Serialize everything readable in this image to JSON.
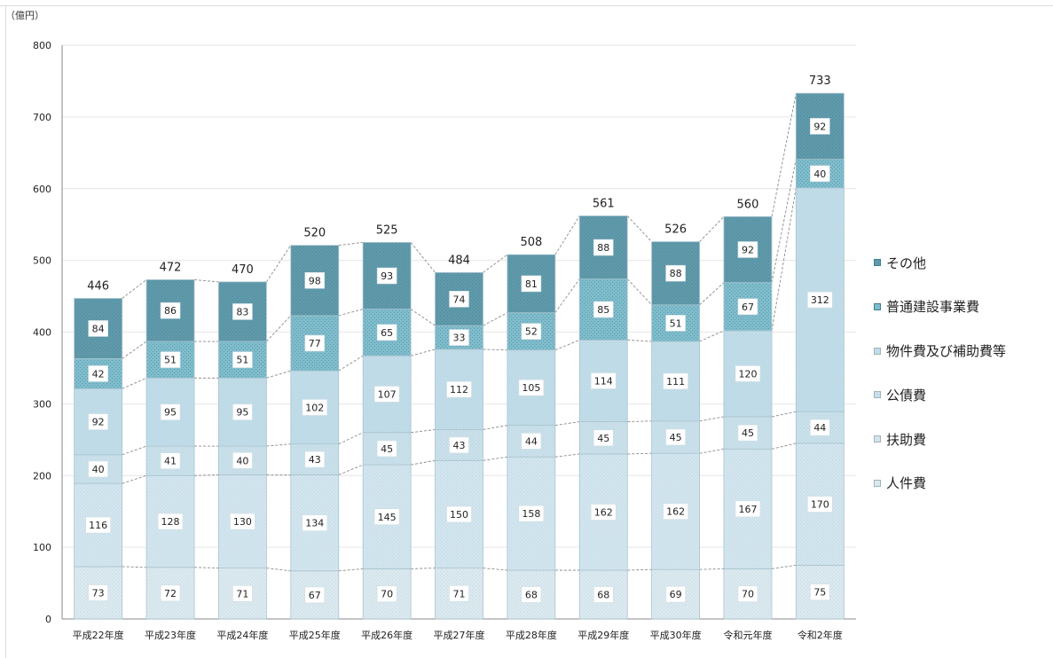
{
  "chart_data": {
    "type": "bar",
    "stacked": true,
    "unit": "（億円）",
    "categories": [
      "平成22年度",
      "平成23年度",
      "平成24年度",
      "平成25年度",
      "平成26年度",
      "平成27年度",
      "平成28年度",
      "平成29年度",
      "平成30年度",
      "令和元年度",
      "令和2年度"
    ],
    "series": [
      {
        "name": "人件費",
        "values": [
          73,
          72,
          71,
          67,
          70,
          71,
          68,
          68,
          69,
          70,
          75
        ],
        "color": "#dbe9ef"
      },
      {
        "name": "扶助費",
        "values": [
          116,
          128,
          130,
          134,
          145,
          150,
          158,
          162,
          162,
          167,
          170
        ],
        "color": "#d2e5ee"
      },
      {
        "name": "公債費",
        "values": [
          40,
          41,
          40,
          43,
          45,
          43,
          44,
          45,
          45,
          45,
          44
        ],
        "color": "#c9e0ea"
      },
      {
        "name": "物件費及び補助費等",
        "values": [
          92,
          95,
          95,
          102,
          107,
          112,
          105,
          114,
          111,
          120,
          312
        ],
        "color": "#c0dce8"
      },
      {
        "name": "普通建設事業費",
        "values": [
          42,
          51,
          51,
          77,
          65,
          33,
          52,
          85,
          51,
          67,
          40
        ],
        "color": "#7fbccc"
      },
      {
        "name": "その他",
        "values": [
          84,
          86,
          83,
          98,
          93,
          74,
          81,
          88,
          88,
          92,
          92
        ],
        "color": "#5f99aa"
      }
    ],
    "totals": [
      446,
      472,
      470,
      520,
      525,
      484,
      508,
      561,
      526,
      560,
      733
    ],
    "yticks": [
      0,
      100,
      200,
      300,
      400,
      500,
      600,
      700,
      800
    ],
    "ylim": [
      0,
      800
    ],
    "grid": true,
    "legend_position": "right"
  },
  "legend_order": [
    "その他",
    "普通建設事業費",
    "物件費及び補助費等",
    "公債費",
    "扶助費",
    "人件費"
  ]
}
